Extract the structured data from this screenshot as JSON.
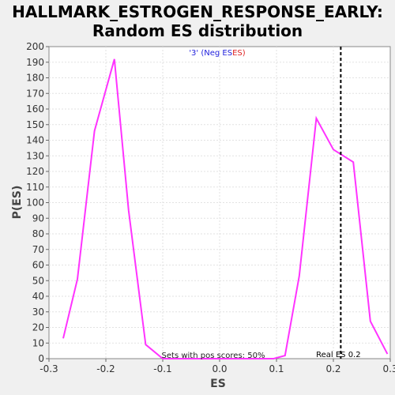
{
  "chart_data": {
    "type": "line",
    "title_line1": "HALLMARK_ESTROGEN_RESPONSE_EARLY:",
    "title_line2": "Random ES distribution",
    "xlabel": "ES",
    "ylabel": "P(ES)",
    "xlim": [
      -0.3,
      0.3
    ],
    "ylim": [
      0,
      200
    ],
    "x_ticks": [
      -0.3,
      -0.2,
      -0.1,
      0.0,
      0.1,
      0.2,
      0.3
    ],
    "x_tick_labels": [
      "-0.3",
      "-0.2",
      "-0.1",
      "0.0",
      "0.1",
      "0.2",
      "0.3"
    ],
    "y_ticks": [
      0,
      10,
      20,
      30,
      40,
      50,
      60,
      70,
      80,
      90,
      100,
      110,
      120,
      130,
      140,
      150,
      160,
      170,
      180,
      190,
      200
    ],
    "grid": true,
    "series": [
      {
        "color": "#ff33ff",
        "points": [
          [
            -0.275,
            13
          ],
          [
            -0.25,
            51
          ],
          [
            -0.22,
            146
          ],
          [
            -0.185,
            192
          ],
          [
            -0.16,
            95
          ],
          [
            -0.13,
            9
          ],
          [
            -0.1,
            0
          ],
          [
            -0.06,
            0
          ],
          [
            0.095,
            0
          ],
          [
            0.115,
            2
          ],
          [
            0.14,
            53
          ],
          [
            0.17,
            154
          ],
          [
            0.2,
            134
          ],
          [
            0.235,
            126
          ],
          [
            0.265,
            24
          ],
          [
            0.295,
            3
          ]
        ]
      }
    ],
    "legend_prefix": "'3' (",
    "legend_neg": "Neg ES",
    "legend_es": "ES",
    "legend_suffix": ")",
    "legend_blue": "#2222dd",
    "legend_red": "#dd2222",
    "real_es": 0.213,
    "real_es_label": "Real ES 0.2",
    "annotation": "Sets with pos scores: 50%"
  }
}
